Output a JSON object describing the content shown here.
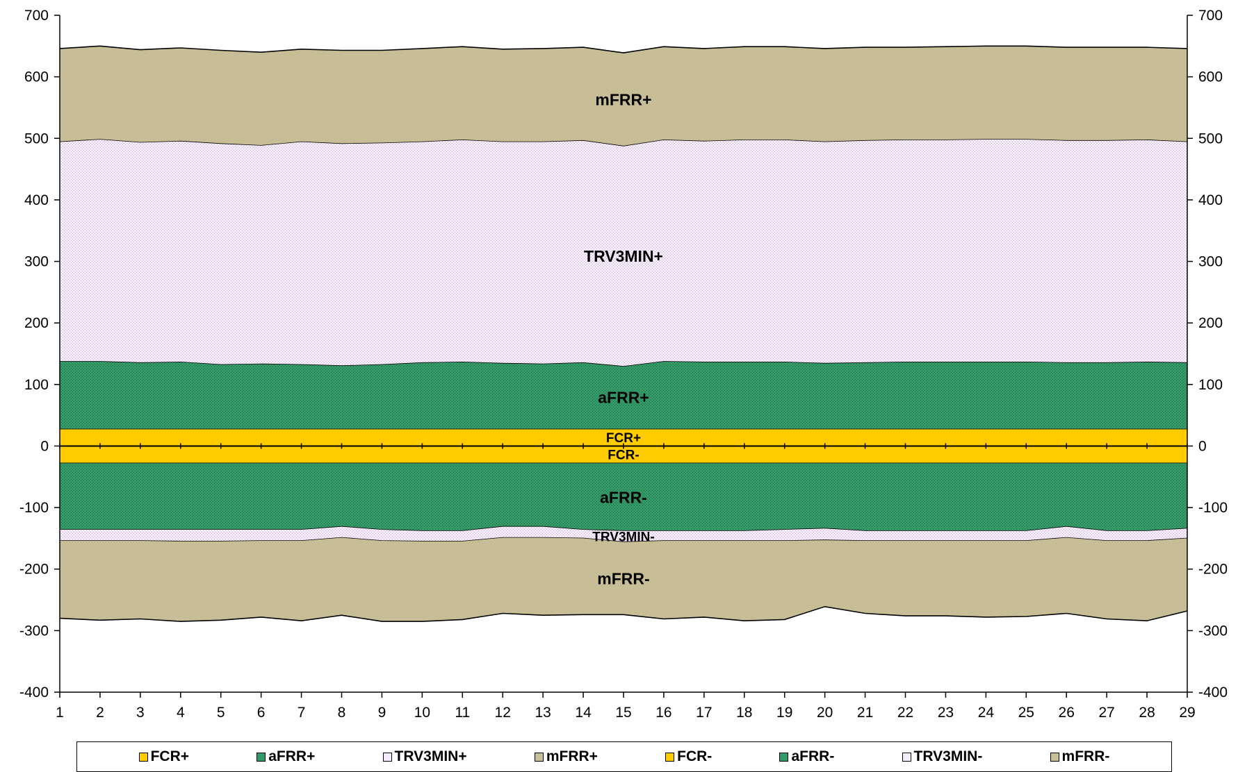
{
  "chart_data": {
    "type": "area",
    "stacked": true,
    "x": [
      1,
      2,
      3,
      4,
      5,
      6,
      7,
      8,
      9,
      10,
      11,
      12,
      13,
      14,
      15,
      16,
      17,
      18,
      19,
      20,
      21,
      22,
      23,
      24,
      25,
      26,
      27,
      28,
      29
    ],
    "ylim": [
      -400,
      700
    ],
    "yticks": [
      700,
      600,
      500,
      400,
      300,
      200,
      100,
      0,
      -100,
      -200,
      -300,
      -400
    ],
    "secondary_y_axis": true,
    "legend_position": "bottom",
    "series": [
      {
        "name": "FCR+",
        "color": "#FFCC00",
        "values": [
          28,
          28,
          28,
          28,
          28,
          28,
          28,
          28,
          28,
          28,
          28,
          28,
          28,
          28,
          28,
          28,
          28,
          28,
          28,
          28,
          28,
          28,
          28,
          28,
          28,
          28,
          28,
          28,
          28
        ]
      },
      {
        "name": "aFRR+",
        "color": "#339966",
        "values": [
          110,
          110,
          108,
          109,
          105,
          106,
          105,
          103,
          105,
          108,
          109,
          107,
          106,
          108,
          102,
          110,
          109,
          109,
          109,
          107,
          108,
          109,
          109,
          109,
          109,
          108,
          108,
          109,
          108
        ]
      },
      {
        "name": "TRV3MIN+",
        "color": "#E8D4F4",
        "values": [
          357,
          361,
          358,
          359,
          359,
          355,
          362,
          361,
          360,
          359,
          361,
          360,
          361,
          361,
          358,
          360,
          359,
          361,
          361,
          360,
          361,
          361,
          361,
          362,
          362,
          361,
          361,
          361,
          359
        ]
      },
      {
        "name": "mFRR+",
        "color": "#C8BF98",
        "values": [
          151,
          151,
          150,
          151,
          151,
          151,
          150,
          151,
          150,
          151,
          151,
          150,
          151,
          151,
          151,
          151,
          150,
          151,
          151,
          151,
          151,
          150,
          151,
          151,
          151,
          151,
          151,
          150,
          151
        ]
      },
      {
        "name": "FCR-",
        "color": "#FFCC00",
        "values": [
          -28,
          -28,
          -28,
          -28,
          -28,
          -28,
          -28,
          -28,
          -28,
          -28,
          -28,
          -28,
          -28,
          -28,
          -28,
          -28,
          -28,
          -28,
          -28,
          -28,
          -28,
          -28,
          -28,
          -28,
          -28,
          -28,
          -28,
          -28,
          -28
        ]
      },
      {
        "name": "aFRR-",
        "color": "#339966",
        "values": [
          -108,
          -108,
          -108,
          -108,
          -108,
          -108,
          -108,
          -103,
          -108,
          -110,
          -110,
          -103,
          -103,
          -108,
          -110,
          -110,
          -110,
          -110,
          -108,
          -106,
          -110,
          -110,
          -110,
          -110,
          -110,
          -103,
          -110,
          -110,
          -106
        ]
      },
      {
        "name": "TRV3MIN-",
        "color": "#E8D4F4",
        "values": [
          -18,
          -18,
          -18,
          -19,
          -19,
          -18,
          -18,
          -18,
          -18,
          -17,
          -17,
          -18,
          -18,
          -14,
          -18,
          -16,
          -16,
          -16,
          -18,
          -19,
          -16,
          -16,
          -16,
          -16,
          -16,
          -18,
          -16,
          -16,
          -16
        ]
      },
      {
        "name": "mFRR-",
        "color": "#C8BF98",
        "values": [
          -126,
          -129,
          -127,
          -130,
          -128,
          -124,
          -130,
          -126,
          -131,
          -130,
          -127,
          -123,
          -126,
          -124,
          -118,
          -127,
          -124,
          -130,
          -128,
          -108,
          -118,
          -122,
          -122,
          -124,
          -123,
          -123,
          -127,
          -130,
          -118
        ]
      }
    ],
    "band_labels": [
      "mFRR+",
      "TRV3MIN+",
      "aFRR+",
      "FCR+",
      "FCR-",
      "aFRR-",
      "TRV3MIN-",
      "mFRR-"
    ]
  }
}
